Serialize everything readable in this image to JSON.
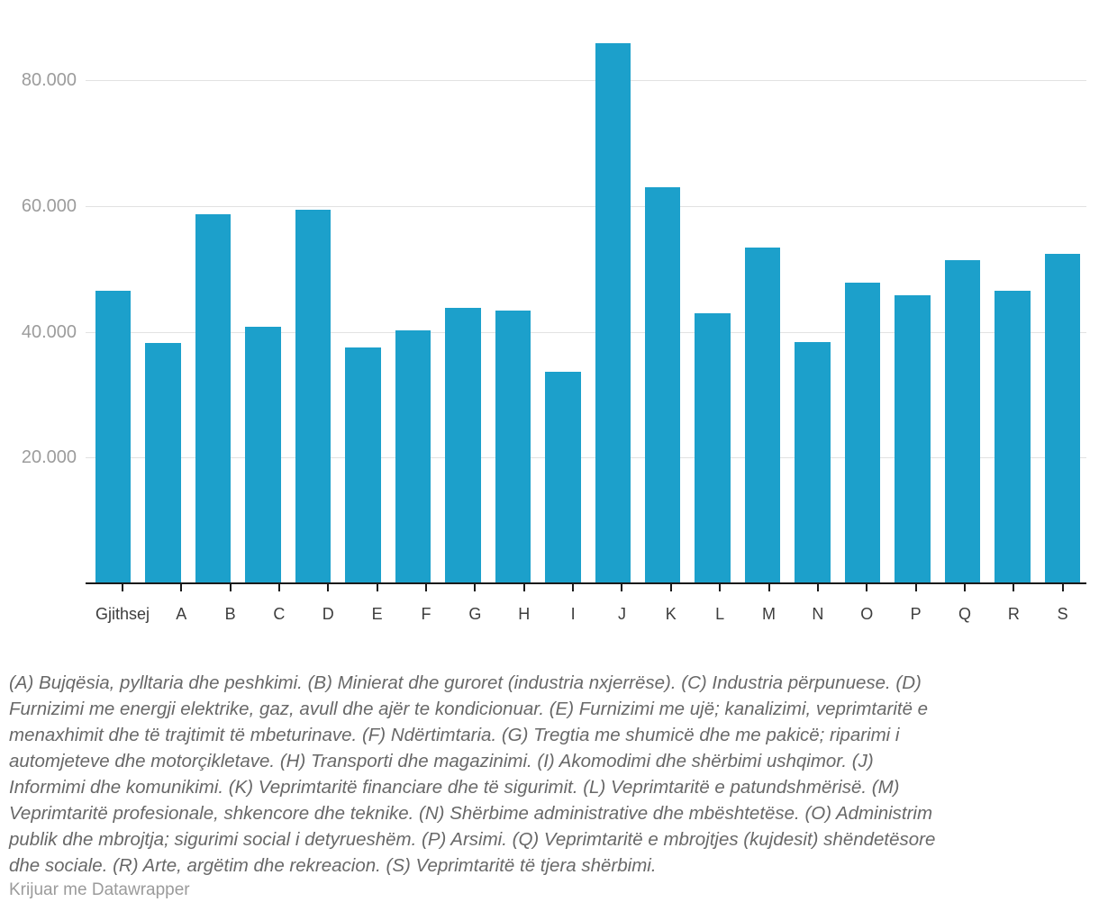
{
  "chart_data": {
    "type": "bar",
    "categories": [
      "Gjithsej",
      "A",
      "B",
      "C",
      "D",
      "E",
      "F",
      "G",
      "H",
      "I",
      "J",
      "K",
      "L",
      "M",
      "N",
      "O",
      "P",
      "Q",
      "R",
      "S"
    ],
    "values": [
      46600,
      38300,
      58800,
      40900,
      59400,
      37500,
      40300,
      43900,
      43400,
      33700,
      86000,
      63000,
      43000,
      53500,
      38400,
      47900,
      45800,
      51400,
      46600,
      52400
    ],
    "title": "",
    "xlabel": "",
    "ylabel": "",
    "ylim": [
      0,
      92800
    ],
    "yticks": [
      20000,
      40000,
      60000,
      80000
    ],
    "ytick_labels": [
      "20.000",
      "40.000",
      "60.000",
      "80.000"
    ],
    "grid": "horizontal",
    "legend": "none",
    "bar_color": "#1CA0CB"
  },
  "footnote_lines": [
    "(A) Bujqësia, pylltaria dhe peshkimi. (B) Minierat dhe guroret (industria nxjerrëse). (C) Industria përpunuese. (D)",
    "Furnizimi me energji elektrike, gaz, avull dhe ajër te kondicionuar. (E) Furnizimi me ujë; kanalizimi, veprimtaritë e",
    "menaxhimit dhe të trajtimit të mbeturinave. (F) Ndërtimtaria. (G) Tregtia me shumicë dhe me pakicë; riparimi i",
    "automjeteve dhe motorçikletave. (H) Transporti dhe magazinimi. (I) Akomodimi dhe shërbimi ushqimor. (J)",
    "Informimi dhe komunikimi. (K) Veprimtaritë financiare dhe të sigurimit. (L) Veprimtaritë e patundshmërisë. (M)",
    "Veprimtaritë profesionale, shkencore dhe teknike. (N) Shërbime administrative dhe mbështetëse. (O) Administrim",
    "publik dhe mbrojtja; sigurimi social i detyrueshëm. (P) Arsimi. (Q) Veprimtaritë e mbrojtjes (kujdesit) shëndetësore",
    "dhe sociale. (R) Arte, argëtim dhe rekreacion. (S) Veprimtaritë të tjera shërbimi."
  ],
  "credit": "Krijuar me Datawrapper"
}
